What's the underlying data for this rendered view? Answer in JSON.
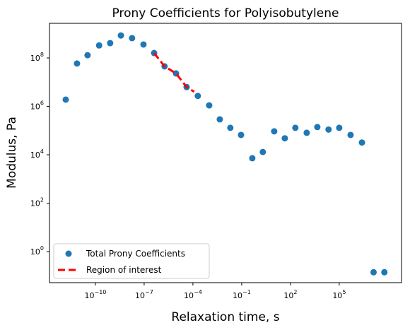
{
  "chart_data": {
    "type": "scatter",
    "title": "Prony Coefficients for Polyisobutylene",
    "x_label": "Relaxation time, s",
    "y_label": "Modulus, Pa",
    "xscale": "log",
    "yscale": "log",
    "xlim": [
      1.5e-13,
      680000000.0
    ],
    "ylim": [
      0.052,
      2700000000.0
    ],
    "xticks": [
      {
        "value": 1e-10,
        "label": {
          "base": "10",
          "exponent": "−10"
        }
      },
      {
        "value": 1e-07,
        "label": {
          "base": "10",
          "exponent": "−7"
        }
      },
      {
        "value": 0.0001,
        "label": {
          "base": "10",
          "exponent": "−4"
        }
      },
      {
        "value": 0.1,
        "label": {
          "base": "10",
          "exponent": "−1"
        }
      },
      {
        "value": 100,
        "label": {
          "base": "10",
          "exponent": "2"
        }
      },
      {
        "value": 100000,
        "label": {
          "base": "10",
          "exponent": "5"
        }
      }
    ],
    "yticks": [
      {
        "value": 1,
        "label": {
          "base": "10",
          "exponent": "0"
        }
      },
      {
        "value": 100,
        "label": {
          "base": "10",
          "exponent": "2"
        }
      },
      {
        "value": 10000,
        "label": {
          "base": "10",
          "exponent": "4"
        }
      },
      {
        "value": 1000000,
        "label": {
          "base": "10",
          "exponent": "6"
        }
      },
      {
        "value": 100000000,
        "label": {
          "base": "10",
          "exponent": "8"
        }
      }
    ],
    "legend": "lower left",
    "series": [
      {
        "name": "Total Prony Coefficients",
        "kind": "scatter",
        "color": "#1f77b4",
        "x": [
          1.5e-12,
          7.4e-12,
          3.3e-11,
          1.7e-10,
          8.1e-10,
          3.7e-09,
          1.8e-08,
          9.1e-08,
          4.1e-07,
          1.8e-06,
          9.1e-06,
          4.1e-05,
          0.0002,
          0.001,
          0.0045,
          0.02,
          0.091,
          0.45,
          2.0,
          10,
          45,
          200,
          1000,
          4500,
          22000,
          100000,
          500000,
          2500000,
          13000000,
          60000000
        ],
        "values": [
          1900000.0,
          59000000.0,
          130000000.0,
          330000000.0,
          410000000.0,
          850000000.0,
          660000000.0,
          360000000.0,
          160000000.0,
          45000000.0,
          23000000.0,
          6300000.0,
          2700000.0,
          1100000.0,
          290000.0,
          130000.0,
          66000.0,
          7200,
          13000,
          93000,
          48000,
          130000,
          81000,
          140000,
          110000,
          130000,
          66000,
          32000,
          0.14,
          0.14
        ]
      },
      {
        "name": "Region of interest",
        "kind": "line",
        "color": "#ff0000",
        "x": [
          4.1e-07,
          1.8e-06,
          9.1e-06,
          4.1e-05,
          0.00012
        ],
        "values": [
          160000000.0,
          45000000.0,
          23000000.0,
          6300000.0,
          4000000.0
        ]
      }
    ]
  }
}
